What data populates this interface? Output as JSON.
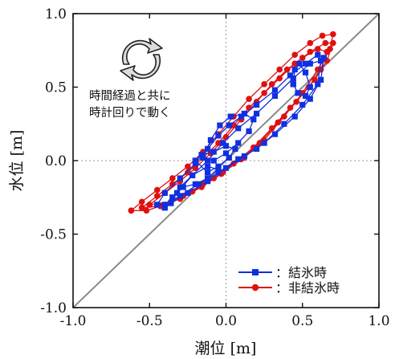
{
  "chart_data": {
    "type": "scatter",
    "xlabel": "潮位 [m]",
    "ylabel": "水位 [m]",
    "xlim": [
      -1.0,
      1.0
    ],
    "ylim": [
      -1.0,
      1.0
    ],
    "x_ticks": [
      "-1.0",
      "-0.5",
      "0.0",
      "0.5",
      "1.0"
    ],
    "y_ticks": [
      "-1.0",
      "-0.5",
      "0.0",
      "0.5",
      "1.0"
    ],
    "grid": "dotted lines at 0",
    "reference_line": "y = x",
    "legend_position": "bottom-right",
    "annotation": [
      "時間経過と共に",
      "時計回りで動く"
    ],
    "series": [
      {
        "name": "：結氷時",
        "color": "#1030e0",
        "marker": "square",
        "loops": [
          [
            [
              -0.45,
              -0.3
            ],
            [
              -0.4,
              -0.22
            ],
            [
              -0.3,
              -0.12
            ],
            [
              -0.2,
              -0.02
            ],
            [
              -0.12,
              0.08
            ],
            [
              -0.05,
              0.17
            ],
            [
              0.02,
              0.24
            ],
            [
              0.1,
              0.3
            ],
            [
              0.2,
              0.38
            ],
            [
              0.32,
              0.48
            ],
            [
              0.42,
              0.58
            ],
            [
              0.52,
              0.66
            ],
            [
              0.6,
              0.72
            ],
            [
              0.64,
              0.7
            ],
            [
              0.62,
              0.55
            ],
            [
              0.55,
              0.42
            ],
            [
              0.45,
              0.3
            ],
            [
              0.32,
              0.18
            ],
            [
              0.2,
              0.08
            ],
            [
              0.08,
              0.01
            ],
            [
              -0.05,
              -0.08
            ],
            [
              -0.18,
              -0.16
            ],
            [
              -0.3,
              -0.24
            ],
            [
              -0.4,
              -0.3
            ],
            [
              -0.45,
              -0.3
            ]
          ],
          [
            [
              -0.4,
              -0.32
            ],
            [
              -0.32,
              -0.22
            ],
            [
              -0.22,
              -0.1
            ],
            [
              -0.12,
              0.0
            ],
            [
              -0.02,
              0.12
            ],
            [
              0.08,
              0.22
            ],
            [
              0.2,
              0.32
            ],
            [
              0.32,
              0.44
            ],
            [
              0.44,
              0.56
            ],
            [
              0.55,
              0.66
            ],
            [
              0.62,
              0.68
            ],
            [
              0.6,
              0.52
            ],
            [
              0.5,
              0.38
            ],
            [
              0.38,
              0.25
            ],
            [
              0.25,
              0.12
            ],
            [
              0.12,
              0.03
            ],
            [
              0.0,
              -0.05
            ],
            [
              -0.12,
              -0.14
            ],
            [
              -0.25,
              -0.22
            ],
            [
              -0.36,
              -0.29
            ],
            [
              -0.4,
              -0.32
            ]
          ],
          [
            [
              -0.15,
              0.02
            ],
            [
              -0.1,
              0.14
            ],
            [
              -0.04,
              0.24
            ],
            [
              0.03,
              0.3
            ],
            [
              0.12,
              0.32
            ],
            [
              0.18,
              0.28
            ],
            [
              0.15,
              0.2
            ],
            [
              0.08,
              0.12
            ],
            [
              0.0,
              0.05
            ],
            [
              -0.08,
              0.0
            ],
            [
              -0.15,
              0.02
            ]
          ],
          [
            [
              0.44,
              0.52
            ],
            [
              0.45,
              0.62
            ],
            [
              0.48,
              0.66
            ],
            [
              0.52,
              0.6
            ],
            [
              0.55,
              0.5
            ],
            [
              0.52,
              0.44
            ],
            [
              0.47,
              0.46
            ],
            [
              0.44,
              0.52
            ]
          ],
          [
            [
              -0.2,
              0.0
            ],
            [
              -0.12,
              -0.08
            ],
            [
              -0.05,
              -0.04
            ],
            [
              0.02,
              0.02
            ],
            [
              0.06,
              0.08
            ],
            [
              0.0,
              0.1
            ],
            [
              -0.08,
              0.06
            ],
            [
              -0.16,
              0.04
            ],
            [
              -0.2,
              0.0
            ]
          ],
          [
            [
              -0.35,
              -0.25
            ],
            [
              -0.28,
              -0.18
            ],
            [
              -0.2,
              -0.16
            ],
            [
              -0.12,
              -0.12
            ],
            [
              -0.05,
              -0.06
            ],
            [
              -0.12,
              -0.04
            ],
            [
              -0.22,
              -0.1
            ],
            [
              -0.3,
              -0.18
            ],
            [
              -0.35,
              -0.25
            ]
          ]
        ]
      },
      {
        "name": "：非結氷時",
        "color": "#e01010",
        "marker": "circle",
        "loops": [
          [
            [
              -0.62,
              -0.34
            ],
            [
              -0.55,
              -0.28
            ],
            [
              -0.45,
              -0.2
            ],
            [
              -0.35,
              -0.12
            ],
            [
              -0.25,
              -0.04
            ],
            [
              -0.15,
              0.06
            ],
            [
              -0.05,
              0.18
            ],
            [
              0.05,
              0.3
            ],
            [
              0.15,
              0.42
            ],
            [
              0.25,
              0.52
            ],
            [
              0.35,
              0.62
            ],
            [
              0.45,
              0.72
            ],
            [
              0.55,
              0.8
            ],
            [
              0.63,
              0.85
            ],
            [
              0.7,
              0.86
            ],
            [
              0.68,
              0.76
            ],
            [
              0.6,
              0.62
            ],
            [
              0.5,
              0.46
            ],
            [
              0.38,
              0.3
            ],
            [
              0.25,
              0.14
            ],
            [
              0.12,
              0.02
            ],
            [
              -0.02,
              -0.08
            ],
            [
              -0.15,
              -0.16
            ],
            [
              -0.28,
              -0.24
            ],
            [
              -0.4,
              -0.3
            ],
            [
              -0.52,
              -0.34
            ],
            [
              -0.62,
              -0.34
            ]
          ],
          [
            [
              -0.55,
              -0.32
            ],
            [
              -0.45,
              -0.24
            ],
            [
              -0.35,
              -0.16
            ],
            [
              -0.25,
              -0.08
            ],
            [
              -0.15,
              0.02
            ],
            [
              -0.05,
              0.12
            ],
            [
              0.05,
              0.24
            ],
            [
              0.15,
              0.36
            ],
            [
              0.25,
              0.46
            ],
            [
              0.35,
              0.56
            ],
            [
              0.45,
              0.66
            ],
            [
              0.55,
              0.74
            ],
            [
              0.65,
              0.8
            ],
            [
              0.7,
              0.8
            ],
            [
              0.66,
              0.68
            ],
            [
              0.58,
              0.55
            ],
            [
              0.46,
              0.4
            ],
            [
              0.34,
              0.26
            ],
            [
              0.22,
              0.12
            ],
            [
              0.1,
              0.01
            ],
            [
              -0.03,
              -0.09
            ],
            [
              -0.16,
              -0.18
            ],
            [
              -0.3,
              -0.26
            ],
            [
              -0.43,
              -0.31
            ],
            [
              -0.55,
              -0.32
            ]
          ],
          [
            [
              -0.5,
              -0.3
            ],
            [
              -0.4,
              -0.22
            ],
            [
              -0.3,
              -0.14
            ],
            [
              -0.2,
              -0.05
            ],
            [
              -0.1,
              0.05
            ],
            [
              0.0,
              0.16
            ],
            [
              0.1,
              0.28
            ],
            [
              0.2,
              0.4
            ],
            [
              0.3,
              0.52
            ],
            [
              0.4,
              0.62
            ],
            [
              0.5,
              0.7
            ],
            [
              0.6,
              0.76
            ],
            [
              0.66,
              0.74
            ],
            [
              0.62,
              0.62
            ],
            [
              0.54,
              0.5
            ],
            [
              0.42,
              0.36
            ],
            [
              0.3,
              0.22
            ],
            [
              0.18,
              0.09
            ],
            [
              0.05,
              -0.02
            ],
            [
              -0.08,
              -0.12
            ],
            [
              -0.22,
              -0.21
            ],
            [
              -0.36,
              -0.28
            ],
            [
              -0.5,
              -0.3
            ]
          ]
        ]
      }
    ]
  }
}
